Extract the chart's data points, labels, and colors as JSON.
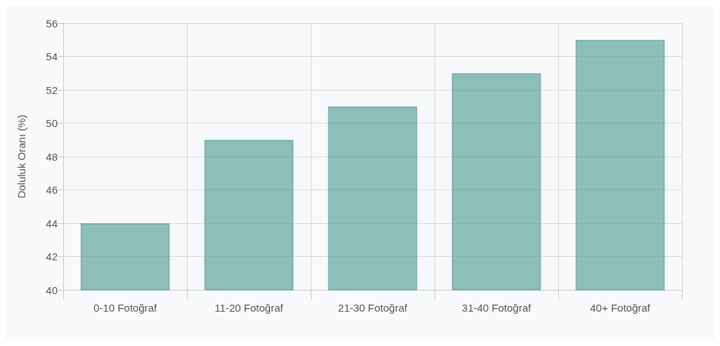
{
  "chart_data": {
    "type": "bar",
    "ylabel": "Doluluk Oranı (%)",
    "categories": [
      "0-10 Fotoğraf",
      "11-20 Fotoğraf",
      "21-30 Fotoğraf",
      "31-40 Fotoğraf",
      "40+ Fotoğraf"
    ],
    "values": [
      44,
      49,
      51,
      53,
      55
    ],
    "color": "#4d9a8e",
    "ylim": [
      40,
      56
    ],
    "yticks": [
      40,
      42,
      44,
      46,
      48,
      50,
      52,
      54,
      56
    ],
    "grid": true
  }
}
